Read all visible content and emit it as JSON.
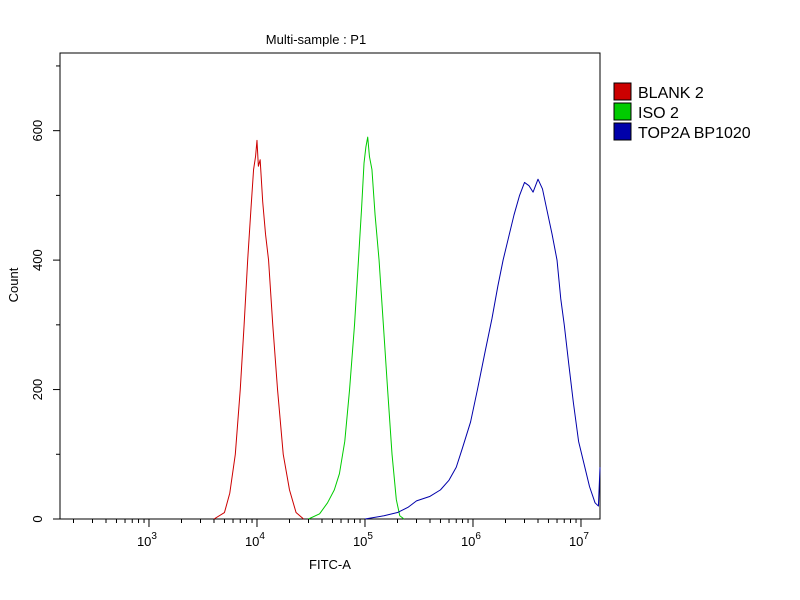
{
  "chart_data": {
    "type": "line",
    "title": "Multi-sample : P1",
    "xlabel": "FITC-A",
    "ylabel": "Count",
    "x_scale": "log",
    "xlim": [
      150,
      15000000
    ],
    "ylim": [
      0,
      720
    ],
    "x_ticks": [
      {
        "value": 1000,
        "base": "10",
        "exp": "3"
      },
      {
        "value": 10000,
        "base": "10",
        "exp": "4"
      },
      {
        "value": 100000,
        "base": "10",
        "exp": "5"
      },
      {
        "value": 1000000,
        "base": "10",
        "exp": "6"
      },
      {
        "value": 10000000,
        "base": "10",
        "exp": "7"
      }
    ],
    "y_ticks": [
      {
        "value": 0,
        "label": "0"
      },
      {
        "value": 200,
        "label": "200"
      },
      {
        "value": 400,
        "label": "400"
      },
      {
        "value": 600,
        "label": "600"
      }
    ],
    "grid": false,
    "legend_position": "right",
    "series": [
      {
        "name": "BLANK 2",
        "color": "#cc0000",
        "points": [
          [
            4000,
            0
          ],
          [
            5000,
            10
          ],
          [
            5600,
            40
          ],
          [
            6300,
            100
          ],
          [
            7000,
            200
          ],
          [
            7600,
            300
          ],
          [
            8200,
            400
          ],
          [
            8800,
            480
          ],
          [
            9300,
            540
          ],
          [
            9700,
            560
          ],
          [
            10000,
            585
          ],
          [
            10300,
            545
          ],
          [
            10700,
            555
          ],
          [
            11300,
            490
          ],
          [
            12000,
            440
          ],
          [
            12800,
            400
          ],
          [
            14000,
            300
          ],
          [
            15500,
            200
          ],
          [
            17500,
            100
          ],
          [
            20000,
            45
          ],
          [
            23000,
            10
          ],
          [
            27000,
            0
          ]
        ]
      },
      {
        "name": "ISO 2",
        "color": "#00cc00",
        "points": [
          [
            30000,
            0
          ],
          [
            38000,
            8
          ],
          [
            45000,
            25
          ],
          [
            52000,
            45
          ],
          [
            58000,
            70
          ],
          [
            65000,
            120
          ],
          [
            72000,
            200
          ],
          [
            80000,
            300
          ],
          [
            87000,
            400
          ],
          [
            93000,
            480
          ],
          [
            98000,
            550
          ],
          [
            102000,
            575
          ],
          [
            106000,
            590
          ],
          [
            110000,
            560
          ],
          [
            116000,
            540
          ],
          [
            124000,
            470
          ],
          [
            135000,
            400
          ],
          [
            148000,
            300
          ],
          [
            162000,
            200
          ],
          [
            178000,
            100
          ],
          [
            195000,
            30
          ],
          [
            210000,
            5
          ],
          [
            230000,
            0
          ]
        ]
      },
      {
        "name": "TOP2A BP1020",
        "color": "#0000aa",
        "points": [
          [
            100000,
            0
          ],
          [
            150000,
            5
          ],
          [
            200000,
            10
          ],
          [
            250000,
            18
          ],
          [
            300000,
            28
          ],
          [
            400000,
            35
          ],
          [
            500000,
            45
          ],
          [
            600000,
            60
          ],
          [
            700000,
            80
          ],
          [
            800000,
            110
          ],
          [
            950000,
            150
          ],
          [
            1100000,
            200
          ],
          [
            1300000,
            260
          ],
          [
            1500000,
            310
          ],
          [
            1700000,
            360
          ],
          [
            1900000,
            400
          ],
          [
            2100000,
            430
          ],
          [
            2400000,
            470
          ],
          [
            2700000,
            500
          ],
          [
            3000000,
            520
          ],
          [
            3300000,
            515
          ],
          [
            3600000,
            505
          ],
          [
            4000000,
            525
          ],
          [
            4400000,
            510
          ],
          [
            4800000,
            480
          ],
          [
            5400000,
            440
          ],
          [
            6000000,
            400
          ],
          [
            6500000,
            340
          ],
          [
            7000000,
            300
          ],
          [
            7700000,
            240
          ],
          [
            8500000,
            180
          ],
          [
            9500000,
            120
          ],
          [
            10500000,
            90
          ],
          [
            12000000,
            50
          ],
          [
            13500000,
            25
          ],
          [
            14500000,
            20
          ],
          [
            15000000,
            80
          ]
        ]
      }
    ]
  }
}
